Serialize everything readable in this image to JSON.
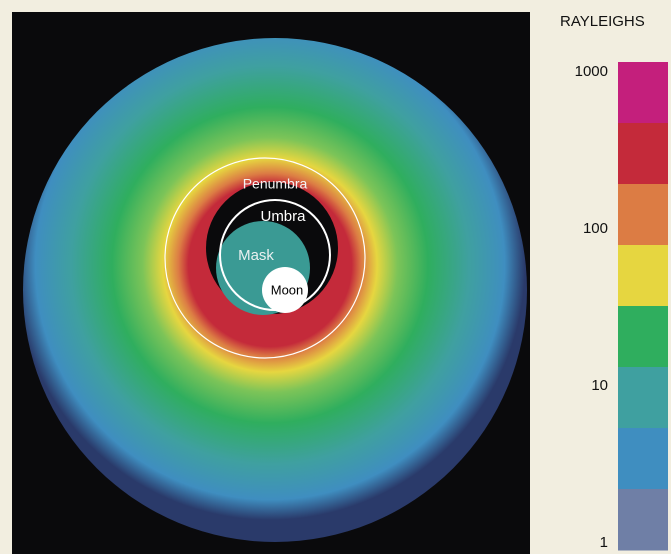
{
  "image": {
    "labels": [
      "Penumbra",
      "Umbra",
      "Mask",
      "Moon"
    ]
  },
  "colorbar": {
    "title": "RAYLEIGHS",
    "scale": "log",
    "lim": [
      1,
      1000
    ],
    "ticks": [
      1000,
      100,
      10,
      1
    ],
    "colors": [
      "#c41f7c",
      "#c42a3a",
      "#dc7c44",
      "#e6d640",
      "#2fae5e",
      "#3fa0a0",
      "#3f8ec0",
      "#6f7fa6"
    ]
  }
}
